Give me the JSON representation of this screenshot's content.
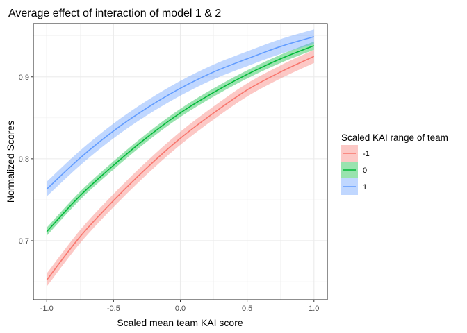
{
  "chart_data": {
    "type": "line",
    "title": "Average effect of interaction of model 1 & 2",
    "xlabel": "Scaled mean team KAI score",
    "ylabel": "Normalized Scores",
    "xlim": [
      -1.1,
      1.1
    ],
    "ylim": [
      0.628,
      0.965
    ],
    "x_ticks": [
      -1.0,
      -0.5,
      0.0,
      0.5,
      1.0
    ],
    "x_tick_labels": [
      "-1.0",
      "-0.5",
      "0.0",
      "0.5",
      "1.0"
    ],
    "y_ticks": [
      0.7,
      0.8,
      0.9
    ],
    "y_tick_labels": [
      "0.7",
      "0.8",
      "0.9"
    ],
    "grid": true,
    "legend": {
      "title": "Scaled KAI range of team",
      "position": "right"
    },
    "series": [
      {
        "name": "-1",
        "color": "#F8766D",
        "x": [
          -1.0,
          -0.75,
          -0.5,
          -0.25,
          0.0,
          0.25,
          0.5,
          0.75,
          1.0
        ],
        "y": [
          0.652,
          0.705,
          0.749,
          0.789,
          0.825,
          0.856,
          0.884,
          0.906,
          0.925
        ],
        "band": 0.008
      },
      {
        "name": "0",
        "color": "#00BA38",
        "x": [
          -1.0,
          -0.75,
          -0.5,
          -0.25,
          0.0,
          0.25,
          0.5,
          0.75,
          1.0
        ],
        "y": [
          0.711,
          0.755,
          0.792,
          0.826,
          0.856,
          0.881,
          0.903,
          0.922,
          0.938
        ],
        "band": 0.005
      },
      {
        "name": "1",
        "color": "#619CFF",
        "x": [
          -1.0,
          -0.75,
          -0.5,
          -0.25,
          0.0,
          0.25,
          0.5,
          0.75,
          1.0
        ],
        "y": [
          0.763,
          0.801,
          0.834,
          0.862,
          0.886,
          0.906,
          0.922,
          0.937,
          0.949
        ],
        "band": 0.009
      }
    ]
  }
}
